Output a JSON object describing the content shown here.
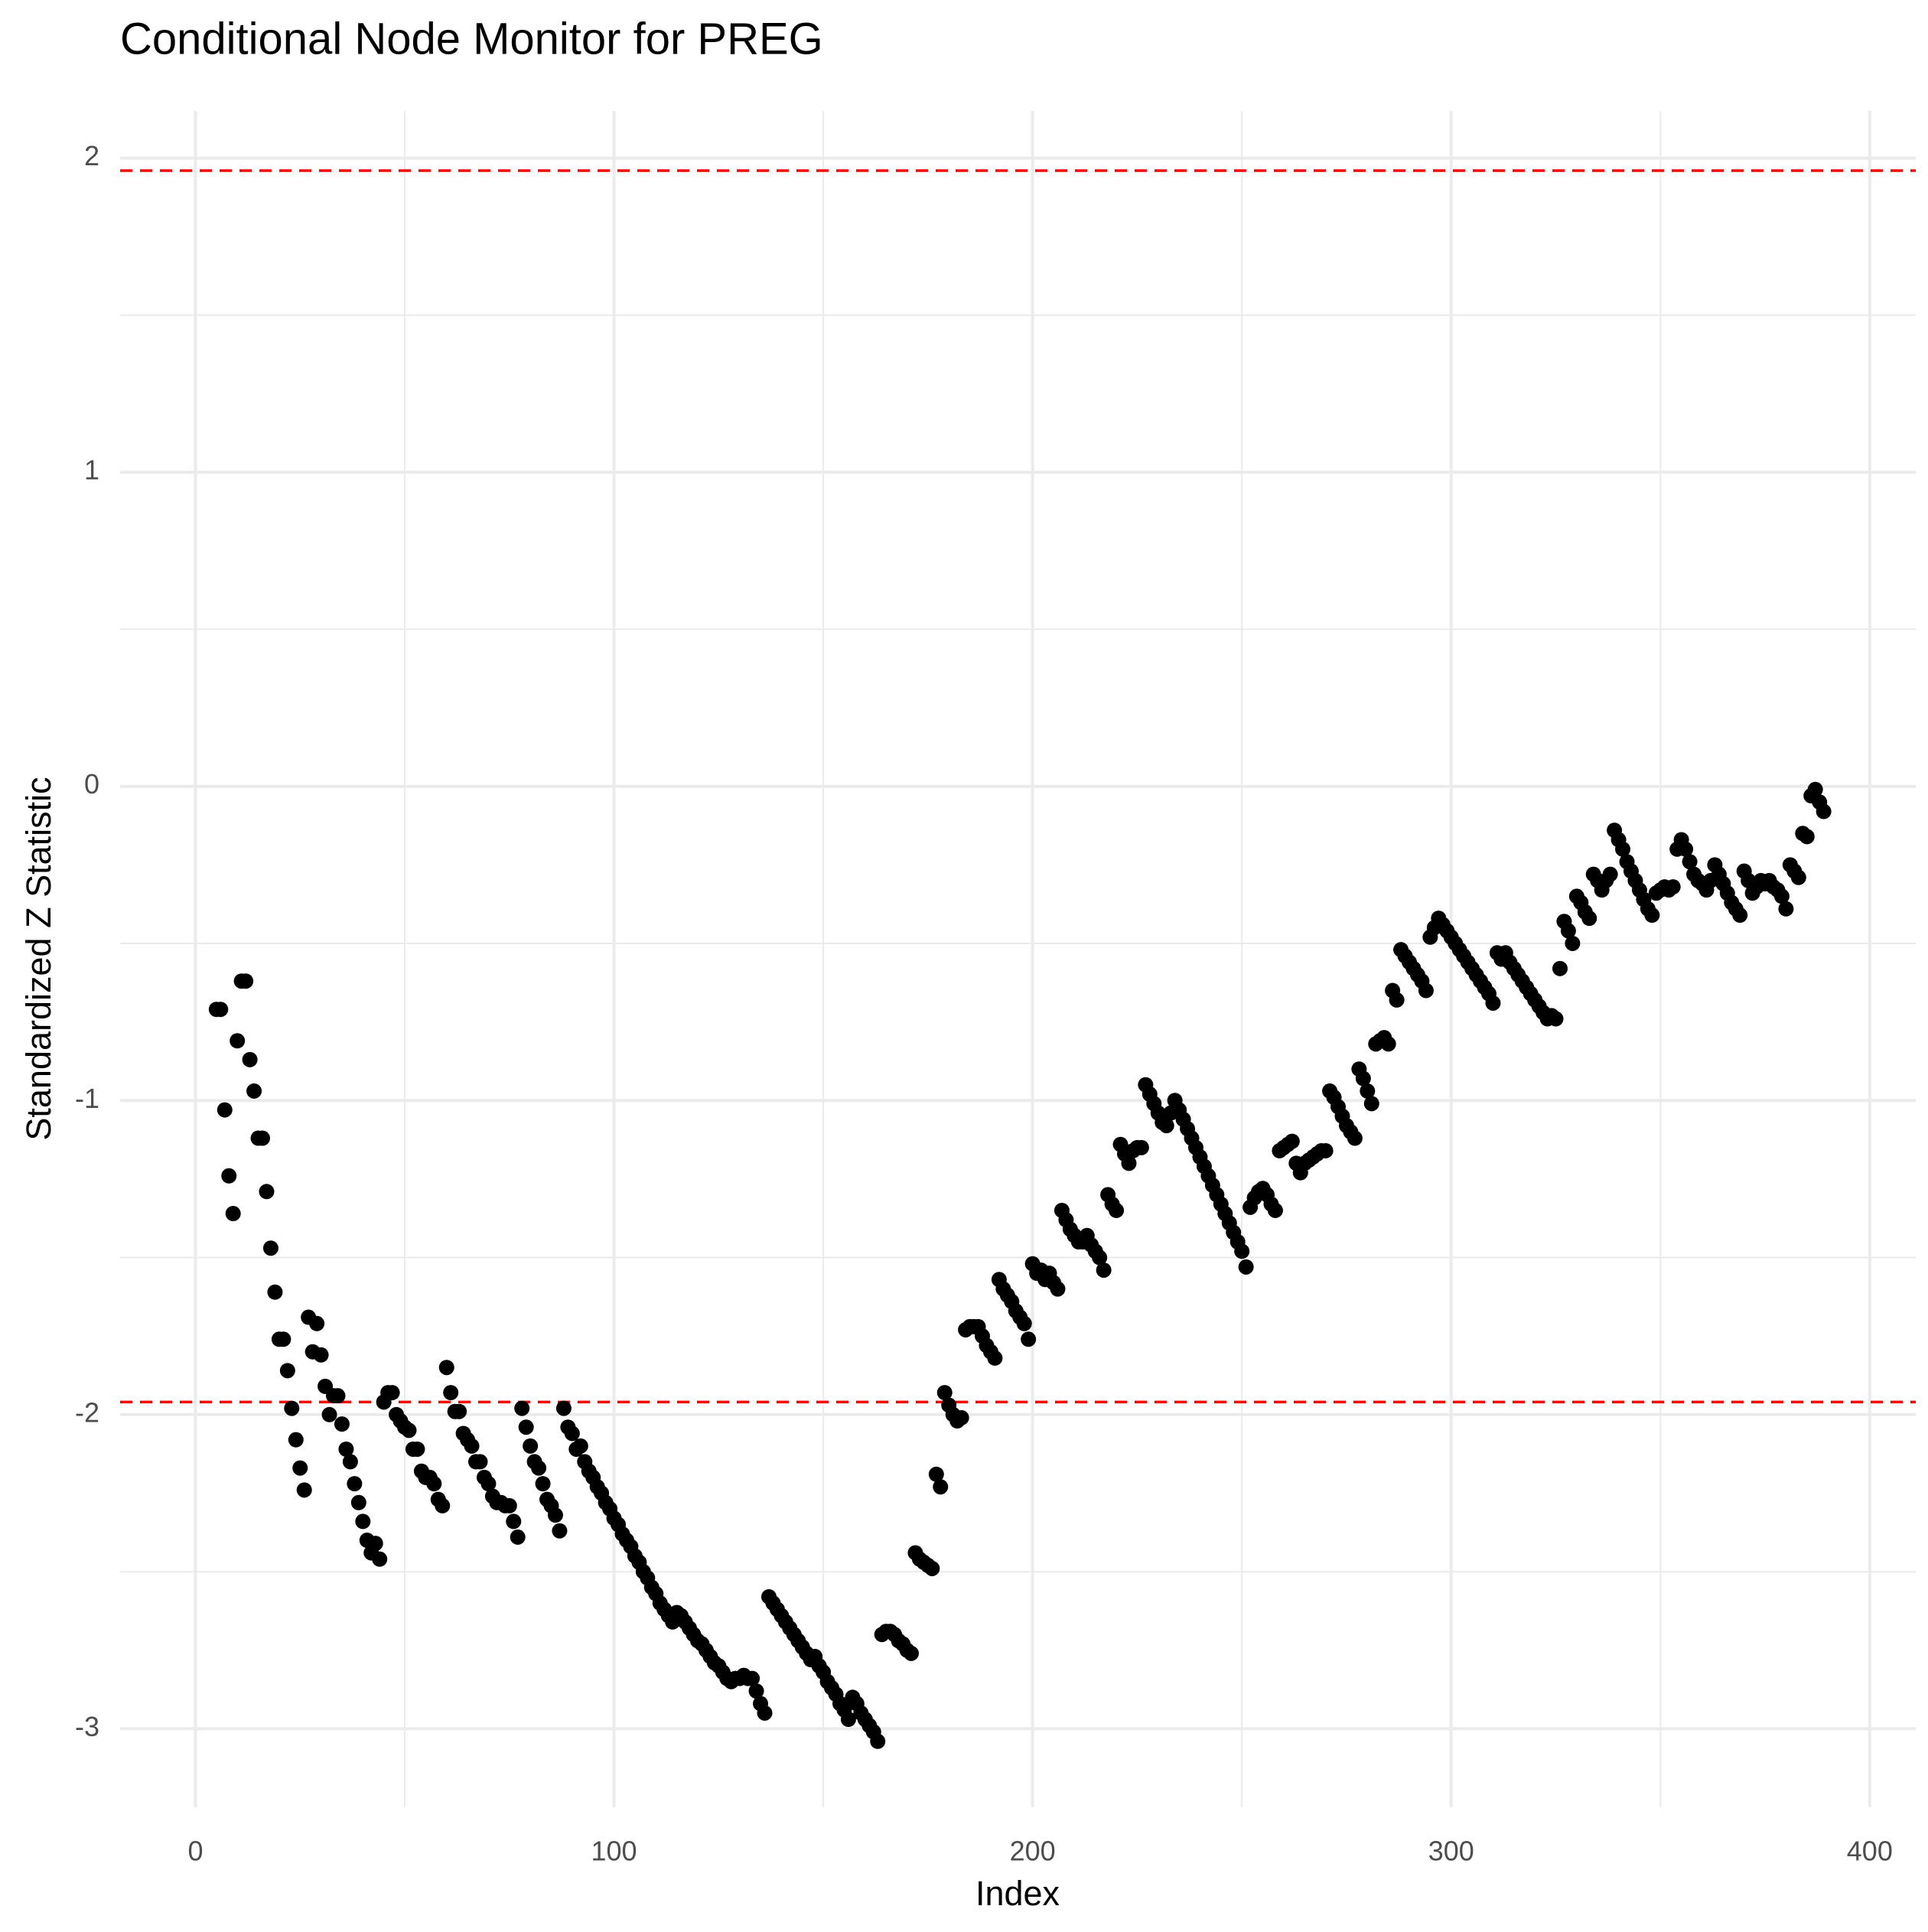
{
  "chart_data": {
    "type": "scatter",
    "title": "Conditional Node Monitor for PREG",
    "x_label": "Index",
    "y_label": "Standardized Z Statistic",
    "xlim": [
      -18,
      411
    ],
    "ylim": [
      -3.25,
      2.15
    ],
    "xticks": [
      0,
      100,
      200,
      300,
      400
    ],
    "yticks": [
      -3,
      -2,
      -1,
      0,
      1,
      2
    ],
    "grid": true,
    "color": "#000000",
    "hlines": [
      1.96,
      -1.96
    ],
    "hline_color": "#ff0000",
    "x": [
      5,
      6,
      7,
      8,
      9,
      10,
      11,
      12,
      13,
      14,
      15,
      16,
      17,
      18,
      19,
      20,
      21,
      22,
      23,
      24,
      25,
      26,
      27,
      28,
      29,
      30,
      31,
      32,
      33,
      34,
      35,
      36,
      37,
      38,
      39,
      40,
      41,
      42,
      43,
      44,
      45,
      46,
      47,
      48,
      49,
      50,
      51,
      52,
      53,
      54,
      55,
      56,
      57,
      58,
      59,
      60,
      61,
      62,
      63,
      64,
      65,
      66,
      67,
      68,
      69,
      70,
      71,
      72,
      73,
      74,
      75,
      76,
      77,
      78,
      79,
      80,
      81,
      82,
      83,
      84,
      85,
      86,
      87,
      88,
      89,
      90,
      91,
      92,
      93,
      94,
      95,
      96,
      97,
      98,
      99,
      100,
      101,
      102,
      103,
      104,
      105,
      106,
      107,
      108,
      109,
      110,
      111,
      112,
      113,
      114,
      115,
      116,
      117,
      118,
      119,
      120,
      121,
      122,
      123,
      124,
      125,
      126,
      127,
      128,
      129,
      130,
      131,
      132,
      133,
      134,
      135,
      136,
      137,
      138,
      139,
      140,
      141,
      142,
      143,
      144,
      145,
      146,
      147,
      148,
      149,
      150,
      151,
      152,
      153,
      154,
      155,
      156,
      157,
      158,
      159,
      160,
      161,
      162,
      163,
      164,
      165,
      166,
      167,
      168,
      169,
      170,
      171,
      172,
      173,
      174,
      175,
      176,
      177,
      178,
      179,
      180,
      181,
      182,
      183,
      184,
      185,
      186,
      187,
      188,
      189,
      190,
      191,
      192,
      193,
      194,
      195,
      196,
      197,
      198,
      199,
      200,
      201,
      202,
      203,
      204,
      205,
      206,
      207,
      208,
      209,
      210,
      211,
      212,
      213,
      214,
      215,
      216,
      217,
      218,
      219,
      220,
      221,
      222,
      223,
      224,
      225,
      226,
      227,
      228,
      229,
      230,
      231,
      232,
      233,
      234,
      235,
      236,
      237,
      238,
      239,
      240,
      241,
      242,
      243,
      244,
      245,
      246,
      247,
      248,
      249,
      250,
      251,
      252,
      253,
      254,
      255,
      256,
      257,
      258,
      259,
      260,
      261,
      262,
      263,
      264,
      265,
      266,
      267,
      268,
      269,
      270,
      271,
      272,
      273,
      274,
      275,
      276,
      277,
      278,
      279,
      280,
      281,
      282,
      283,
      284,
      285,
      286,
      287,
      288,
      289,
      290,
      291,
      292,
      293,
      294,
      295,
      296,
      297,
      298,
      299,
      300,
      301,
      302,
      303,
      304,
      305,
      306,
      307,
      308,
      309,
      310,
      311,
      312,
      313,
      314,
      315,
      316,
      317,
      318,
      319,
      320,
      321,
      322,
      323,
      324,
      325,
      326,
      327,
      328,
      329,
      330,
      331,
      332,
      333,
      334,
      335,
      336,
      337,
      338,
      339,
      340,
      341,
      342,
      343,
      344,
      345,
      346,
      347,
      348,
      349,
      350,
      351,
      352,
      353,
      354,
      355,
      356,
      357,
      358,
      359,
      360,
      361,
      362,
      363,
      364,
      365,
      366,
      367,
      368,
      369,
      370,
      371,
      372,
      373,
      374,
      375,
      376,
      377,
      378,
      379,
      380,
      381,
      382,
      383,
      384,
      385,
      386,
      387,
      388,
      389
    ],
    "values": [
      -0.71,
      -0.71,
      -1.03,
      -1.24,
      -1.36,
      -0.81,
      -0.62,
      -0.62,
      -0.87,
      -0.97,
      -1.12,
      -1.12,
      -1.29,
      -1.47,
      -1.61,
      -1.76,
      -1.76,
      -1.86,
      -1.98,
      -2.08,
      -2.17,
      -2.24,
      -1.69,
      -1.8,
      -1.71,
      -1.81,
      -1.91,
      -2.0,
      -1.94,
      -1.94,
      -2.03,
      -2.11,
      -2.15,
      -2.22,
      -2.28,
      -2.34,
      -2.4,
      -2.44,
      -2.41,
      -2.46,
      -1.96,
      -1.93,
      -1.93,
      -2.0,
      -2.02,
      -2.04,
      -2.05,
      -2.11,
      -2.11,
      -2.18,
      -2.2,
      -2.2,
      -2.22,
      -2.27,
      -2.29,
      -1.85,
      -1.93,
      -1.99,
      -1.99,
      -2.06,
      -2.08,
      -2.1,
      -2.15,
      -2.15,
      -2.2,
      -2.22,
      -2.26,
      -2.28,
      -2.28,
      -2.29,
      -2.29,
      -2.34,
      -2.39,
      -1.98,
      -2.04,
      -2.1,
      -2.15,
      -2.17,
      -2.22,
      -2.27,
      -2.29,
      -2.32,
      -2.37,
      -1.98,
      -2.04,
      -2.06,
      -2.11,
      -2.1,
      -2.15,
      -2.18,
      -2.2,
      -2.23,
      -2.25,
      -2.28,
      -2.3,
      -2.33,
      -2.35,
      -2.38,
      -2.4,
      -2.42,
      -2.45,
      -2.47,
      -2.5,
      -2.52,
      -2.55,
      -2.57,
      -2.6,
      -2.62,
      -2.64,
      -2.66,
      -2.63,
      -2.64,
      -2.66,
      -2.68,
      -2.7,
      -2.72,
      -2.73,
      -2.75,
      -2.77,
      -2.79,
      -2.8,
      -2.82,
      -2.84,
      -2.85,
      -2.84,
      -2.84,
      -2.83,
      -2.84,
      -2.84,
      -2.88,
      -2.92,
      -2.95,
      -2.58,
      -2.6,
      -2.62,
      -2.64,
      -2.66,
      -2.68,
      -2.7,
      -2.72,
      -2.74,
      -2.76,
      -2.78,
      -2.77,
      -2.8,
      -2.82,
      -2.85,
      -2.87,
      -2.89,
      -2.92,
      -2.94,
      -2.97,
      -2.9,
      -2.92,
      -2.95,
      -2.97,
      -2.99,
      -3.01,
      -3.04,
      -2.7,
      -2.69,
      -2.69,
      -2.7,
      -2.72,
      -2.73,
      -2.75,
      -2.76,
      -2.44,
      -2.46,
      -2.47,
      -2.48,
      -2.49,
      -2.19,
      -2.23,
      -1.93,
      -1.97,
      -2.0,
      -2.02,
      -2.01,
      -1.73,
      -1.72,
      -1.72,
      -1.72,
      -1.75,
      -1.78,
      -1.8,
      -1.82,
      -1.57,
      -1.6,
      -1.62,
      -1.64,
      -1.67,
      -1.69,
      -1.71,
      -1.76,
      -1.52,
      -1.55,
      -1.54,
      -1.57,
      -1.55,
      -1.58,
      -1.6,
      -1.35,
      -1.38,
      -1.41,
      -1.43,
      -1.45,
      -1.45,
      -1.43,
      -1.46,
      -1.48,
      -1.5,
      -1.54,
      -1.3,
      -1.33,
      -1.35,
      -1.14,
      -1.17,
      -1.2,
      -1.16,
      -1.15,
      -1.15,
      -0.95,
      -0.98,
      -1.01,
      -1.04,
      -1.07,
      -1.08,
      -1.04,
      -1.0,
      -1.03,
      -1.06,
      -1.09,
      -1.12,
      -1.15,
      -1.18,
      -1.21,
      -1.24,
      -1.27,
      -1.3,
      -1.33,
      -1.36,
      -1.39,
      -1.42,
      -1.45,
      -1.48,
      -1.53,
      -1.34,
      -1.31,
      -1.29,
      -1.28,
      -1.3,
      -1.33,
      -1.35,
      -1.16,
      -1.15,
      -1.14,
      -1.13,
      -1.2,
      -1.23,
      -1.2,
      -1.19,
      -1.18,
      -1.17,
      -1.16,
      -1.16,
      -0.97,
      -0.99,
      -1.02,
      -1.05,
      -1.08,
      -1.1,
      -1.12,
      -0.9,
      -0.93,
      -0.97,
      -1.01,
      -0.82,
      -0.81,
      -0.8,
      -0.82,
      -0.65,
      -0.68,
      -0.52,
      -0.54,
      -0.56,
      -0.58,
      -0.6,
      -0.62,
      -0.65,
      -0.48,
      -0.45,
      -0.42,
      -0.44,
      -0.46,
      -0.48,
      -0.5,
      -0.52,
      -0.54,
      -0.56,
      -0.58,
      -0.6,
      -0.62,
      -0.64,
      -0.66,
      -0.69,
      -0.53,
      -0.55,
      -0.53,
      -0.56,
      -0.58,
      -0.6,
      -0.62,
      -0.64,
      -0.66,
      -0.68,
      -0.7,
      -0.72,
      -0.74,
      -0.73,
      -0.74,
      -0.58,
      -0.43,
      -0.46,
      -0.5,
      -0.35,
      -0.37,
      -0.4,
      -0.42,
      -0.28,
      -0.3,
      -0.33,
      -0.3,
      -0.28,
      -0.14,
      -0.17,
      -0.2,
      -0.24,
      -0.27,
      -0.3,
      -0.33,
      -0.36,
      -0.39,
      -0.41,
      -0.34,
      -0.33,
      -0.32,
      -0.33,
      -0.32,
      -0.2,
      -0.17,
      -0.2,
      -0.24,
      -0.28,
      -0.3,
      -0.31,
      -0.33,
      -0.3,
      -0.25,
      -0.28,
      -0.31,
      -0.34,
      -0.37,
      -0.39,
      -0.41,
      -0.27,
      -0.3,
      -0.34,
      -0.32,
      -0.3,
      -0.31,
      -0.3,
      -0.32,
      -0.33,
      -0.35,
      -0.39,
      -0.25,
      -0.27,
      -0.29,
      -0.15,
      -0.16,
      -0.03,
      -0.01,
      -0.05,
      -0.08
    ]
  }
}
